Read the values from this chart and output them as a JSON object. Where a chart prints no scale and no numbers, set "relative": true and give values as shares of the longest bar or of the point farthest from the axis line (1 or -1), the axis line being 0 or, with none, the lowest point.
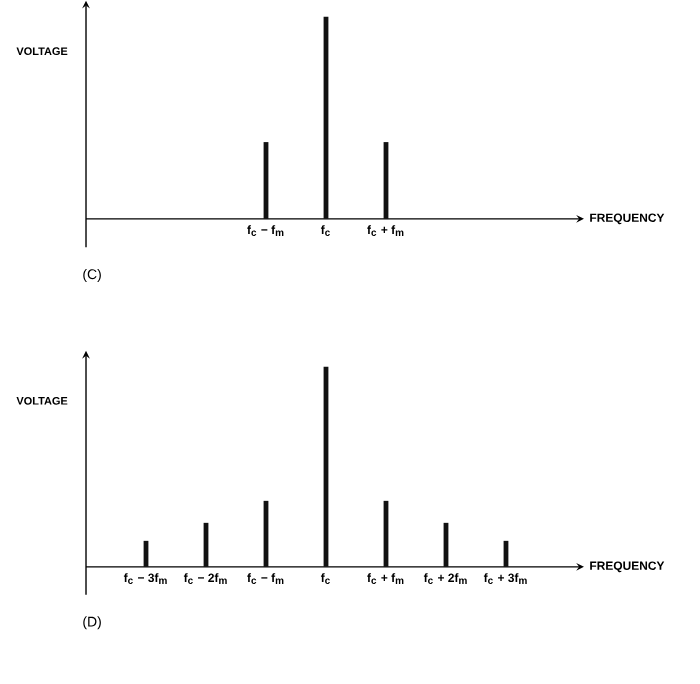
{
  "chart_data": [
    {
      "type": "bar",
      "relative": true,
      "ylabel": "VOLTAGE",
      "xlabel": "FREQUENCY",
      "color": "#111111",
      "categories": [
        null,
        null,
        "f$_{c}$ − f$_{m}$",
        "f$_{c}$",
        "f$_{c}$ + f$_{m}$",
        null,
        null
      ],
      "values": [
        null,
        null,
        0.38,
        1,
        0.38,
        null,
        null
      ],
      "annotations": [
        "(C)"
      ]
    },
    {
      "type": "bar",
      "relative": true,
      "ylabel": "VOLTAGE",
      "xlabel": "FREQUENCY",
      "color": "#111111",
      "categories": [
        "f$_{c}$ − 3f$_{m}$",
        "f$_{c}$ − 2f$_{m}$",
        "f$_{c}$ − f$_{m}$",
        "f$_{c}$",
        "f$_{c}$ + f$_{m}$",
        "f$_{c}$ + 2f$_{m}$",
        "f$_{c}$ + 3f$_{m}$"
      ],
      "values": [
        0.13,
        0.22,
        0.33,
        1,
        0.33,
        0.22,
        0.13
      ],
      "annotations": [
        "(D)"
      ]
    }
  ]
}
